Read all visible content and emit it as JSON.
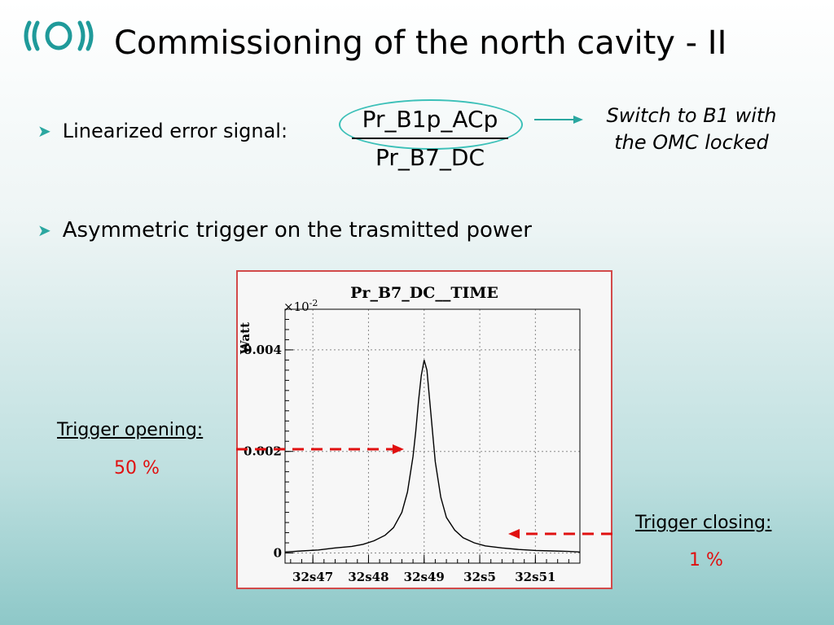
{
  "title": "Commissioning of the north cavity - II",
  "logo_icon": "virgo-logo",
  "bullets": [
    {
      "text": "Linearized error signal:"
    },
    {
      "text": "Asymmetric trigger on the trasmitted power"
    }
  ],
  "formula": {
    "numerator": "Pr_B1p_ACp",
    "denominator": "Pr_B7_DC"
  },
  "note": {
    "line1": "Switch to B1 with",
    "line2": "the OMC locked"
  },
  "trigger_opening": {
    "label": "Trigger opening:",
    "value": "50 %"
  },
  "trigger_closing": {
    "label": "Trigger closing:",
    "value": "1 %"
  },
  "colors": {
    "accent": "#2aa7a0",
    "trigger": "#e01010",
    "frame": "#d24a4a"
  },
  "chart_data": {
    "type": "line",
    "title": "Pr_B7_DC__TIME",
    "ylabel": "Watt",
    "exponent_label": "×10",
    "exponent_power": "-2",
    "ylim": [
      -0.0002,
      0.0048
    ],
    "yticks": [
      {
        "value": 0,
        "label": "0"
      },
      {
        "value": 0.002,
        "label": "0.002"
      },
      {
        "value": 0.004,
        "label": "0.004"
      }
    ],
    "xlim": [
      46.5,
      51.8
    ],
    "xticks": [
      {
        "value": 47,
        "label": "32s47"
      },
      {
        "value": 48,
        "label": "32s48"
      },
      {
        "value": 49,
        "label": "32s49"
      },
      {
        "value": 50,
        "label": "32s5"
      },
      {
        "value": 51,
        "label": "32s51"
      }
    ],
    "grid": true,
    "series": [
      {
        "x": [
          46.5,
          46.8,
          47.1,
          47.4,
          47.7,
          47.9,
          48.1,
          48.3,
          48.45,
          48.6,
          48.7,
          48.8,
          48.85,
          48.9,
          48.95,
          49.0,
          49.05,
          49.1,
          49.15,
          49.2,
          49.3,
          49.4,
          49.55,
          49.7,
          49.9,
          50.1,
          50.4,
          50.7,
          51.0,
          51.3,
          51.6,
          51.8
        ],
        "y": [
          2e-05,
          4e-05,
          6e-05,
          0.0001,
          0.00013,
          0.00017,
          0.00024,
          0.00035,
          0.0005,
          0.0008,
          0.0012,
          0.0019,
          0.0024,
          0.003,
          0.0035,
          0.0038,
          0.0036,
          0.003,
          0.0024,
          0.0018,
          0.0011,
          0.0007,
          0.00045,
          0.0003,
          0.0002,
          0.00014,
          0.0001,
          7e-05,
          5e-05,
          4e-05,
          3e-05,
          2e-05
        ]
      }
    ],
    "annotations": [
      {
        "type": "trigger-opening-arrow",
        "level_fraction_of_peak": 0.5
      },
      {
        "type": "trigger-closing-arrow",
        "level_fraction_of_peak": 0.01
      }
    ]
  }
}
